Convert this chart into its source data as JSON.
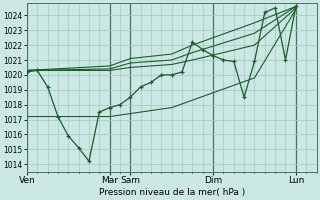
{
  "background_color": "#cce8e4",
  "grid_color": "#aaccc8",
  "line_color": "#1a5c2a",
  "xlabel": "Pression niveau de la mer( hPa )",
  "ylim": [
    1013.5,
    1024.8
  ],
  "xlim": [
    0,
    14
  ],
  "yticks": [
    1014,
    1015,
    1016,
    1017,
    1018,
    1019,
    1020,
    1021,
    1022,
    1023,
    1024
  ],
  "xtick_major_pos": [
    0,
    4,
    5,
    9,
    13
  ],
  "xtick_major_lab": [
    "Ven",
    "Mar",
    "Sam",
    "Dim",
    "Lun"
  ],
  "series": [
    {
      "x": [
        0,
        0.5,
        1.0,
        1.5,
        2.0,
        2.5,
        3.0,
        3.5,
        4.0,
        4.5,
        5.0,
        5.5,
        6.0,
        6.5,
        7.0,
        7.5,
        8.0,
        8.5,
        9.0,
        9.5,
        10.0,
        10.5,
        11.0,
        11.5,
        12.0,
        12.5,
        13.0
      ],
      "y": [
        1020.2,
        1020.3,
        1019.2,
        1017.2,
        1015.9,
        1015.1,
        1014.2,
        1017.5,
        1017.8,
        1018.0,
        1018.5,
        1019.2,
        1019.5,
        1020.0,
        1020.0,
        1020.2,
        1022.2,
        1021.7,
        1021.3,
        1021.0,
        1020.9,
        1018.5,
        1020.9,
        1024.2,
        1024.5,
        1021.0,
        1024.6
      ],
      "marker": true
    },
    {
      "x": [
        0,
        4,
        5,
        7,
        8,
        11,
        13
      ],
      "y": [
        1020.3,
        1020.6,
        1021.1,
        1021.4,
        1022.0,
        1023.5,
        1024.6
      ],
      "marker": false
    },
    {
      "x": [
        0,
        4,
        5,
        7,
        8,
        11,
        13
      ],
      "y": [
        1020.3,
        1020.4,
        1020.8,
        1021.0,
        1021.5,
        1022.8,
        1024.6
      ],
      "marker": false
    },
    {
      "x": [
        0,
        4,
        5,
        7,
        8,
        11,
        13
      ],
      "y": [
        1020.3,
        1020.3,
        1020.5,
        1020.7,
        1021.0,
        1022.0,
        1024.5
      ],
      "marker": false
    },
    {
      "x": [
        0,
        4,
        5,
        7,
        8,
        11,
        13
      ],
      "y": [
        1017.2,
        1017.2,
        1017.4,
        1017.8,
        1018.3,
        1019.8,
        1024.4
      ],
      "marker": false
    }
  ]
}
